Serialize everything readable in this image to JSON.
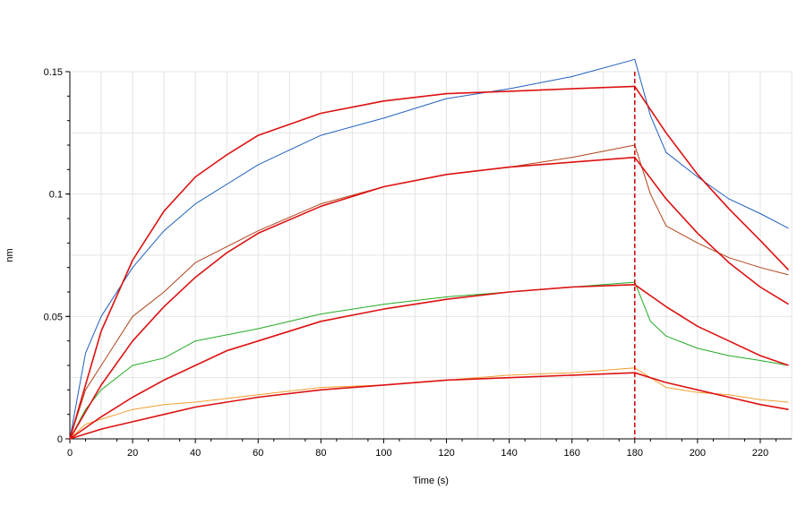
{
  "chart_data": {
    "type": "line",
    "title": "",
    "xlabel": "Time (s)",
    "ylabel": "nm",
    "xlim": [
      0,
      230
    ],
    "ylim": [
      0,
      0.15
    ],
    "xticks": [
      0,
      20,
      40,
      60,
      80,
      100,
      120,
      140,
      160,
      180,
      200,
      220
    ],
    "xtick_labels": [
      "0",
      "20",
      "40",
      "60",
      "80",
      "100",
      "120",
      "140",
      "160",
      "180",
      "200",
      "220"
    ],
    "yticks": [
      0,
      0.05,
      0.1,
      0.15
    ],
    "ytick_labels": [
      "0",
      "0.05",
      "0.1",
      "0.15"
    ],
    "grid": true,
    "legend": "none",
    "annotations": [
      {
        "type": "vertical-dashed-line",
        "x": 180,
        "color": "#cc0000"
      }
    ],
    "series": [
      {
        "kind": "measured",
        "color": "#1f5fbf",
        "x": [
          0,
          5,
          10,
          20,
          30,
          40,
          60,
          80,
          100,
          120,
          140,
          160,
          180,
          185,
          190,
          200,
          210,
          220,
          229
        ],
        "y": [
          0,
          0.035,
          0.05,
          0.07,
          0.085,
          0.096,
          0.112,
          0.124,
          0.131,
          0.139,
          0.143,
          0.148,
          0.155,
          0.132,
          0.117,
          0.107,
          0.098,
          0.092,
          0.086
        ]
      },
      {
        "kind": "measured",
        "color": "#b0441a",
        "x": [
          0,
          5,
          10,
          20,
          30,
          40,
          60,
          80,
          100,
          120,
          140,
          160,
          180,
          185,
          190,
          200,
          210,
          220,
          229
        ],
        "y": [
          0,
          0.02,
          0.03,
          0.05,
          0.06,
          0.072,
          0.085,
          0.096,
          0.103,
          0.108,
          0.111,
          0.115,
          0.12,
          0.1,
          0.087,
          0.08,
          0.074,
          0.07,
          0.067
        ]
      },
      {
        "kind": "measured",
        "color": "#22aa22",
        "x": [
          0,
          5,
          10,
          20,
          30,
          40,
          60,
          80,
          100,
          120,
          140,
          160,
          180,
          185,
          190,
          200,
          210,
          220,
          229
        ],
        "y": [
          0,
          0.012,
          0.02,
          0.03,
          0.033,
          0.04,
          0.045,
          0.051,
          0.055,
          0.058,
          0.06,
          0.062,
          0.064,
          0.048,
          0.042,
          0.037,
          0.034,
          0.032,
          0.03
        ]
      },
      {
        "kind": "measured",
        "color": "#f0a030",
        "x": [
          0,
          5,
          10,
          20,
          30,
          40,
          60,
          80,
          100,
          120,
          140,
          160,
          180,
          185,
          190,
          200,
          210,
          220,
          229
        ],
        "y": [
          0,
          0.006,
          0.008,
          0.012,
          0.014,
          0.015,
          0.018,
          0.021,
          0.022,
          0.024,
          0.026,
          0.027,
          0.029,
          0.025,
          0.021,
          0.019,
          0.018,
          0.016,
          0.015
        ]
      },
      {
        "kind": "fit",
        "color": "#dd1111",
        "x": [
          0,
          10,
          20,
          30,
          40,
          50,
          60,
          80,
          100,
          120,
          140,
          160,
          180,
          190,
          200,
          210,
          220,
          229
        ],
        "y": [
          0,
          0.044,
          0.073,
          0.093,
          0.107,
          0.116,
          0.124,
          0.133,
          0.138,
          0.141,
          0.142,
          0.143,
          0.144,
          0.125,
          0.108,
          0.094,
          0.081,
          0.069
        ]
      },
      {
        "kind": "fit",
        "color": "#dd1111",
        "x": [
          0,
          10,
          20,
          30,
          40,
          50,
          60,
          80,
          100,
          120,
          140,
          160,
          180,
          190,
          200,
          210,
          220,
          229
        ],
        "y": [
          0,
          0.022,
          0.04,
          0.054,
          0.066,
          0.076,
          0.084,
          0.095,
          0.103,
          0.108,
          0.111,
          0.113,
          0.115,
          0.098,
          0.084,
          0.072,
          0.062,
          0.055
        ]
      },
      {
        "kind": "fit",
        "color": "#dd1111",
        "x": [
          0,
          10,
          20,
          30,
          40,
          50,
          60,
          80,
          100,
          120,
          140,
          160,
          180,
          190,
          200,
          210,
          220,
          229
        ],
        "y": [
          0,
          0.009,
          0.017,
          0.024,
          0.03,
          0.036,
          0.04,
          0.048,
          0.053,
          0.057,
          0.06,
          0.062,
          0.063,
          0.054,
          0.046,
          0.04,
          0.034,
          0.03
        ]
      },
      {
        "kind": "fit",
        "color": "#dd1111",
        "x": [
          0,
          10,
          20,
          30,
          40,
          50,
          60,
          80,
          100,
          120,
          140,
          160,
          180,
          190,
          200,
          210,
          220,
          229
        ],
        "y": [
          0,
          0.004,
          0.007,
          0.01,
          0.013,
          0.015,
          0.017,
          0.02,
          0.022,
          0.024,
          0.025,
          0.026,
          0.027,
          0.023,
          0.02,
          0.017,
          0.014,
          0.012
        ]
      }
    ]
  }
}
